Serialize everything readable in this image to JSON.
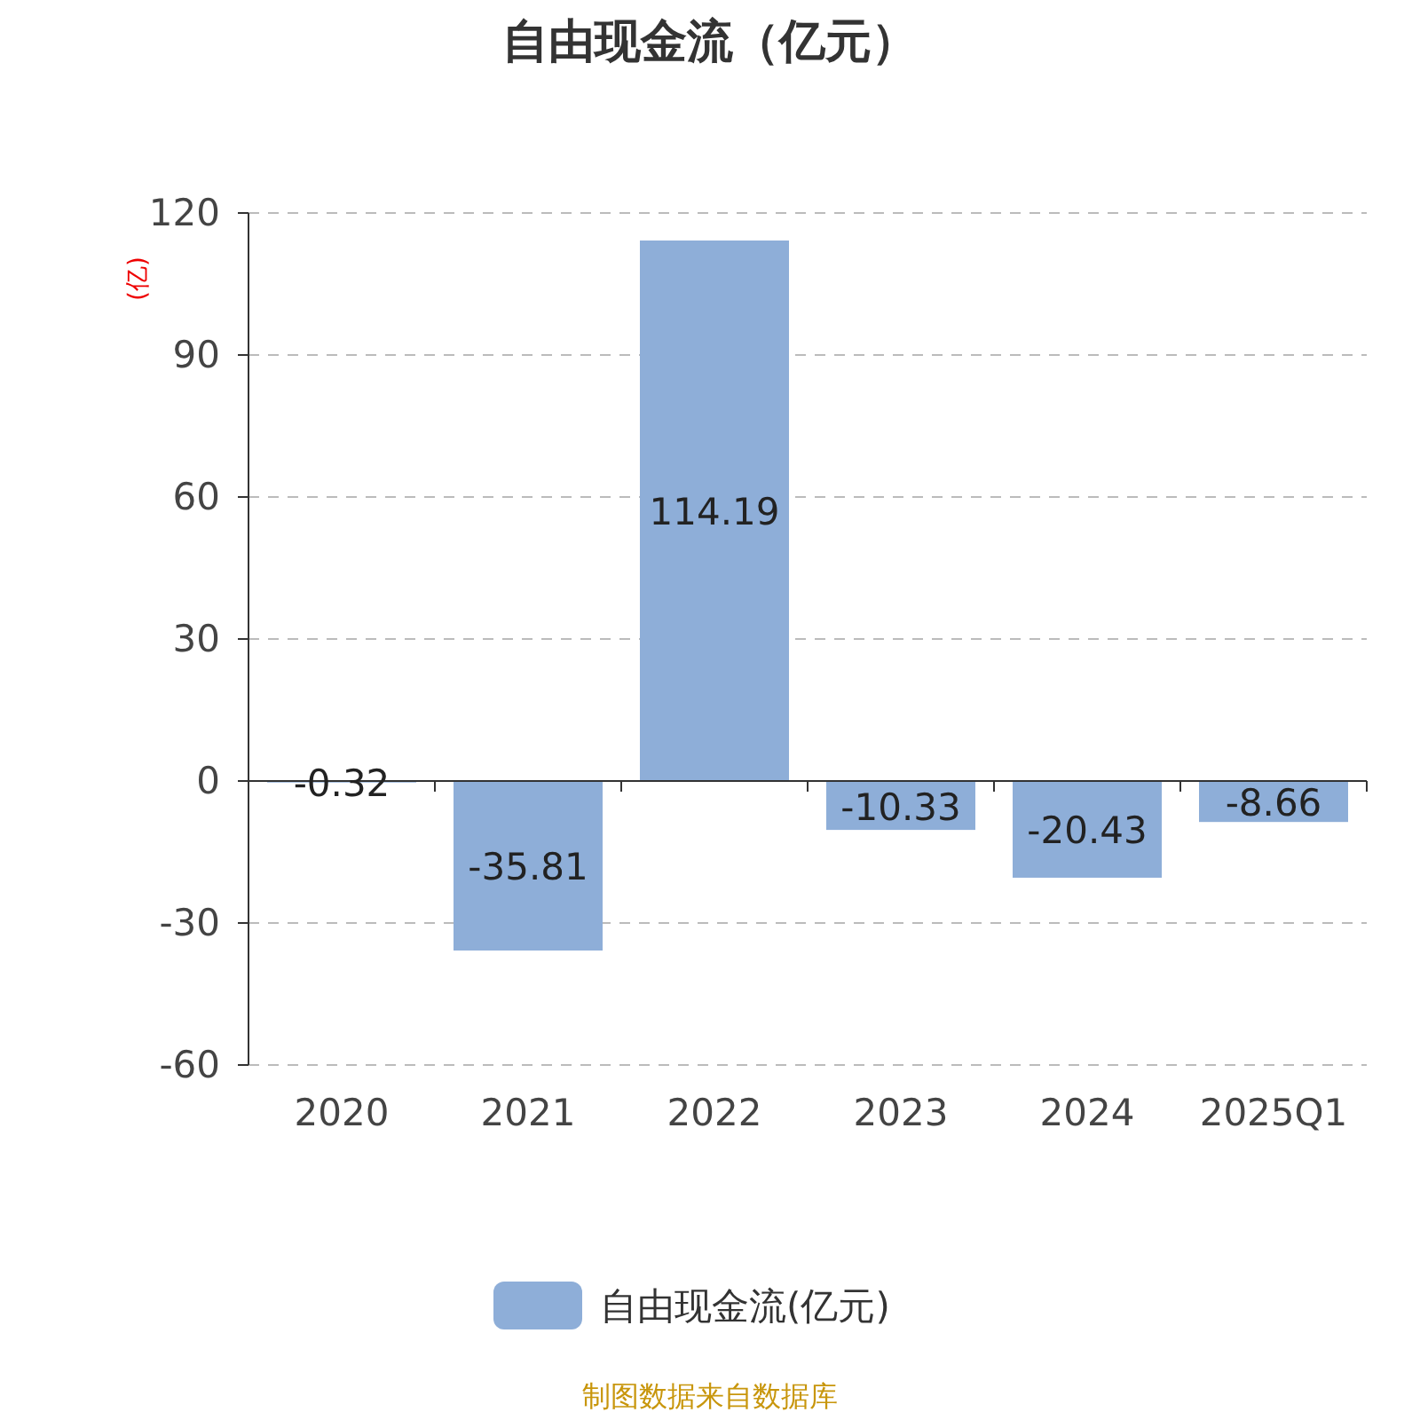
{
  "chart_data": {
    "type": "bar",
    "title": "自由现金流（亿元）",
    "ylabel": "(亿)",
    "categories": [
      "2020",
      "2021",
      "2022",
      "2023",
      "2024",
      "2025Q1"
    ],
    "series": [
      {
        "name": "自由现金流(亿元)",
        "color": "#8eaed8",
        "values": [
          -0.32,
          -35.81,
          114.19,
          -10.33,
          -20.43,
          -8.66
        ]
      }
    ],
    "ylim": [
      -60,
      120
    ],
    "yticks": [
      -60,
      -30,
      0,
      30,
      60,
      90,
      120
    ],
    "grid": "y",
    "legend": "bottom",
    "data_labels": true,
    "annotations": [
      "制图数据来自数据库"
    ]
  }
}
